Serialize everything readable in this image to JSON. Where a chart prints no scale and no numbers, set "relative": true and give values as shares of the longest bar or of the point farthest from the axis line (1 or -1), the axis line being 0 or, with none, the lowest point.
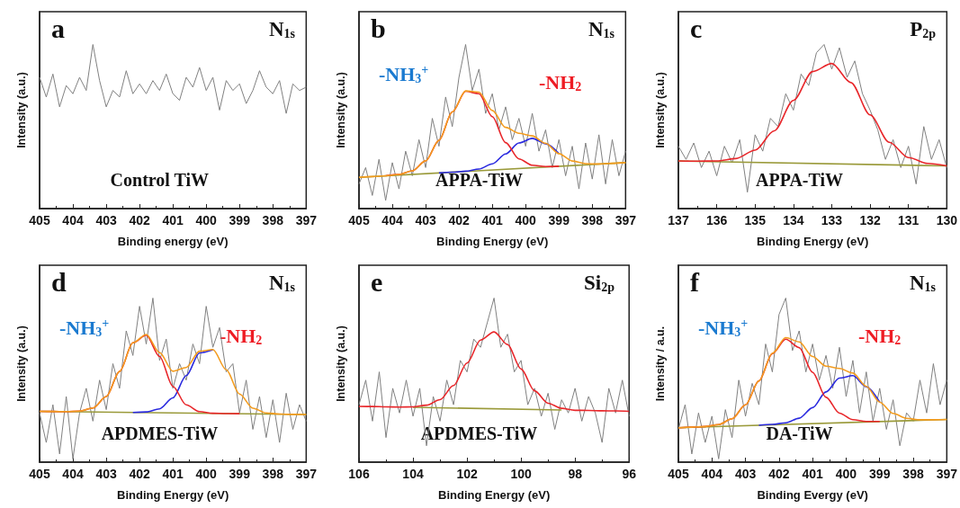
{
  "chart_data": [
    {
      "type": "line",
      "title": "a",
      "subtitle": "N$_{1s}$",
      "xlabel": "Binding energy (eV)",
      "ylabel": "Intensity (a.u.)",
      "annotations": [
        "Control TiW"
      ],
      "relative": true,
      "marker": "none",
      "xlim": [
        405,
        397
      ],
      "xticks": [
        405,
        404,
        403,
        402,
        401,
        400,
        399,
        398,
        397
      ],
      "series": [
        {
          "color": "#808080",
          "x": [
            405,
            404.8,
            404.6,
            404.4,
            404.2,
            404,
            403.8,
            403.6,
            403.4,
            403.2,
            403,
            402.8,
            402.6,
            402.4,
            402.2,
            402,
            401.8,
            401.6,
            401.4,
            401.2,
            401,
            400.8,
            400.6,
            400.4,
            400.2,
            400,
            399.8,
            399.6,
            399.4,
            399.2,
            399,
            398.8,
            398.6,
            398.4,
            398.2,
            398,
            397.8,
            397.6,
            397.4,
            397.2,
            397
          ],
          "values": [
            0.8,
            0.68,
            0.82,
            0.62,
            0.75,
            0.7,
            0.8,
            0.72,
            1,
            0.78,
            0.62,
            0.72,
            0.68,
            0.84,
            0.7,
            0.76,
            0.7,
            0.78,
            0.72,
            0.82,
            0.7,
            0.66,
            0.8,
            0.74,
            0.86,
            0.72,
            0.8,
            0.6,
            0.78,
            0.72,
            0.76,
            0.64,
            0.72,
            0.84,
            0.74,
            0.7,
            0.78,
            0.58,
            0.76,
            0.72,
            0.74
          ]
        }
      ]
    },
    {
      "type": "line",
      "title": "b",
      "subtitle": "N$_{1s}$",
      "xlabel": "Binding Energy (eV)",
      "ylabel": "Intensity (a.u.)",
      "annotations": [
        "APPA-TiW",
        "-NH$_{3}$$^{+}$",
        "-NH$_{2}$"
      ],
      "relative": true,
      "marker": "none",
      "xlim": [
        405,
        397
      ],
      "xticks": [
        405,
        404,
        403,
        402,
        401,
        400,
        399,
        398,
        397
      ],
      "series": [
        {
          "color": "#808080",
          "x": [
            405,
            404.8,
            404.6,
            404.4,
            404.2,
            404,
            403.8,
            403.6,
            403.4,
            403.2,
            403,
            402.8,
            402.6,
            402.4,
            402.2,
            402,
            401.8,
            401.6,
            401.4,
            401.2,
            401,
            400.8,
            400.6,
            400.4,
            400.2,
            400,
            399.8,
            399.6,
            399.4,
            399.2,
            399,
            398.8,
            398.6,
            398.4,
            398.2,
            398,
            397.8,
            397.6,
            397.4,
            397.2,
            397
          ],
          "values": [
            0.15,
            0.25,
            0.08,
            0.3,
            0.05,
            0.28,
            0.12,
            0.35,
            0.2,
            0.42,
            0.25,
            0.55,
            0.38,
            0.68,
            0.5,
            0.8,
            1,
            0.72,
            0.85,
            0.58,
            0.7,
            0.48,
            0.62,
            0.42,
            0.55,
            0.38,
            0.58,
            0.35,
            0.48,
            0.25,
            0.42,
            0.2,
            0.38,
            0.12,
            0.4,
            0.18,
            0.45,
            0.15,
            0.42,
            0.2,
            0.35
          ]
        },
        {
          "color": "#9a9a3a",
          "x": [
            405,
            397
          ],
          "values": [
            0.19,
            0.28
          ]
        },
        {
          "color": "#2a2adf",
          "x": [
            402.6,
            402.2,
            401.8,
            401.4,
            401,
            400.6,
            400.2,
            399.8,
            399.4,
            399
          ],
          "values": [
            0.217,
            0.222,
            0.228,
            0.241,
            0.273,
            0.333,
            0.4,
            0.428,
            0.395,
            0.335
          ]
        },
        {
          "color": "#e8262a",
          "x": [
            404.2,
            403.8,
            403.4,
            403,
            402.6,
            402.2,
            401.8,
            401.4,
            401,
            400.6,
            400.2,
            399.8,
            399.4,
            399
          ],
          "values": [
            0.2,
            0.208,
            0.23,
            0.291,
            0.416,
            0.589,
            0.715,
            0.7,
            0.56,
            0.402,
            0.303,
            0.264,
            0.256,
            0.258
          ]
        },
        {
          "color": "#f39c1f",
          "x": [
            405,
            404.6,
            404.2,
            403.8,
            403.4,
            403,
            402.6,
            402.2,
            401.8,
            401.4,
            401,
            400.6,
            400.2,
            399.8,
            399.4,
            399,
            398.6,
            398.2,
            397.8,
            397.4,
            397
          ],
          "values": [
            0.19,
            0.195,
            0.2,
            0.208,
            0.23,
            0.291,
            0.416,
            0.589,
            0.717,
            0.71,
            0.598,
            0.495,
            0.459,
            0.443,
            0.398,
            0.335,
            0.29,
            0.274,
            0.272,
            0.276,
            0.28
          ]
        }
      ]
    },
    {
      "type": "line",
      "title": "c",
      "subtitle": "P$_{2p}$",
      "xlabel": "Binding Energy (eV)",
      "ylabel": "Intensity (a.u.)",
      "annotations": [
        "APPA-TiW"
      ],
      "relative": true,
      "marker": "none",
      "xlim": [
        137,
        130
      ],
      "xticks": [
        137,
        136,
        135,
        134,
        133,
        132,
        131,
        130
      ],
      "series": [
        {
          "color": "#808080",
          "x": [
            137,
            136.8,
            136.6,
            136.4,
            136.2,
            136,
            135.8,
            135.6,
            135.4,
            135.2,
            135,
            134.8,
            134.6,
            134.4,
            134.2,
            134,
            133.8,
            133.6,
            133.4,
            133.2,
            133,
            132.8,
            132.6,
            132.4,
            132.2,
            132,
            131.8,
            131.6,
            131.4,
            131.2,
            131,
            130.8,
            130.6,
            130.4,
            130.2,
            130
          ],
          "values": [
            0.38,
            0.3,
            0.4,
            0.25,
            0.35,
            0.2,
            0.38,
            0.28,
            0.42,
            0.1,
            0.45,
            0.35,
            0.55,
            0.5,
            0.7,
            0.6,
            0.82,
            0.75,
            0.95,
            1,
            0.85,
            0.98,
            0.8,
            0.9,
            0.7,
            0.6,
            0.48,
            0.3,
            0.42,
            0.25,
            0.38,
            0.15,
            0.5,
            0.3,
            0.42,
            0.25
          ]
        },
        {
          "color": "#9a9a3a",
          "x": [
            137,
            130
          ],
          "values": [
            0.29,
            0.26
          ]
        },
        {
          "color": "#e8262a",
          "x": [
            137,
            136.5,
            136,
            135.5,
            135,
            134.5,
            134,
            133.5,
            133,
            132.5,
            132,
            131.5,
            131,
            130.5,
            130
          ],
          "values": [
            0.29,
            0.289,
            0.29,
            0.305,
            0.356,
            0.474,
            0.659,
            0.835,
            0.884,
            0.768,
            0.571,
            0.404,
            0.311,
            0.275,
            0.26
          ]
        }
      ]
    },
    {
      "type": "line",
      "title": "d",
      "subtitle": "N$_{1s}$",
      "xlabel": "Binding Energy (eV)",
      "ylabel": "Intensity (a.u.)",
      "annotations": [
        "APDMES-TiW",
        "-NH$_{3}$$^{+}$",
        "-NH$_{2}$"
      ],
      "relative": true,
      "marker": "none",
      "xlim": [
        405,
        397
      ],
      "xticks": [
        405,
        404,
        403,
        402,
        401,
        400,
        399,
        398,
        397
      ],
      "series": [
        {
          "color": "#808080",
          "x": [
            405,
            404.8,
            404.6,
            404.4,
            404.2,
            404,
            403.8,
            403.6,
            403.4,
            403.2,
            403,
            402.8,
            402.6,
            402.4,
            402.2,
            402,
            401.8,
            401.6,
            401.4,
            401.2,
            401,
            400.8,
            400.6,
            400.4,
            400.2,
            400,
            399.8,
            399.6,
            399.4,
            399.2,
            399,
            398.8,
            398.6,
            398.4,
            398.2,
            398,
            397.8,
            397.6,
            397.4,
            397.2,
            397
          ],
          "values": [
            0.3,
            0.12,
            0.35,
            0.05,
            0.4,
            0.02,
            0.3,
            0.45,
            0.25,
            0.5,
            0.32,
            0.6,
            0.45,
            0.8,
            0.65,
            0.95,
            0.72,
            1,
            0.62,
            0.75,
            0.45,
            0.6,
            0.5,
            0.72,
            0.6,
            0.95,
            0.7,
            0.82,
            0.55,
            0.6,
            0.3,
            0.5,
            0.2,
            0.4,
            0.15,
            0.38,
            0.12,
            0.42,
            0.2,
            0.35,
            0.25
          ]
        },
        {
          "color": "#9a9a3a",
          "x": [
            405,
            397
          ],
          "values": [
            0.31,
            0.29
          ]
        },
        {
          "color": "#2a2adf",
          "x": [
            402.2,
            401.8,
            401.4,
            401,
            400.6,
            400.2,
            399.8
          ],
          "values": [
            0.303,
            0.306,
            0.325,
            0.392,
            0.527,
            0.666,
            0.685
          ]
        },
        {
          "color": "#e8262a",
          "x": [
            405,
            404.6,
            404.2,
            403.8,
            403.4,
            403,
            402.6,
            402.2,
            401.8,
            401.4,
            401,
            400.6,
            400.2,
            399.8,
            399.4,
            399
          ],
          "values": [
            0.31,
            0.309,
            0.308,
            0.311,
            0.33,
            0.4,
            0.553,
            0.727,
            0.774,
            0.644,
            0.462,
            0.349,
            0.308,
            0.298,
            0.296,
            0.295
          ]
        },
        {
          "color": "#f39c1f",
          "x": [
            405,
            404.6,
            404.2,
            403.8,
            403.4,
            403,
            402.6,
            402.2,
            401.8,
            401.4,
            401,
            400.6,
            400.2,
            399.8,
            399.4,
            399,
            398.6,
            398.2,
            397.8,
            397.4,
            397
          ],
          "values": [
            0.31,
            0.309,
            0.308,
            0.311,
            0.33,
            0.4,
            0.553,
            0.727,
            0.778,
            0.668,
            0.554,
            0.577,
            0.676,
            0.686,
            0.563,
            0.415,
            0.329,
            0.3,
            0.293,
            0.291,
            0.29
          ]
        }
      ]
    },
    {
      "type": "line",
      "title": "e",
      "subtitle": "Si$_{2p}$",
      "xlabel": "Binding Energy (eV)",
      "ylabel": "Intensity (a.u.)",
      "annotations": [
        "APDMES-TiW"
      ],
      "relative": true,
      "marker": "none",
      "xlim": [
        106,
        96
      ],
      "xticks": [
        106,
        104,
        102,
        100,
        98,
        96
      ],
      "series": [
        {
          "color": "#808080",
          "x": [
            106,
            105.75,
            105.5,
            105.25,
            105,
            104.75,
            104.5,
            104.25,
            104,
            103.75,
            103.5,
            103.25,
            103,
            102.75,
            102.5,
            102.25,
            102,
            101.75,
            101.5,
            101.25,
            101,
            100.75,
            100.5,
            100.25,
            100,
            99.75,
            99.5,
            99.25,
            99,
            98.75,
            98.5,
            98.25,
            98,
            97.75,
            97.5,
            97.25,
            97,
            96.75,
            96.5,
            96.25,
            96
          ],
          "values": [
            0.35,
            0.5,
            0.25,
            0.55,
            0.15,
            0.45,
            0.3,
            0.5,
            0.28,
            0.45,
            0.1,
            0.4,
            0.25,
            0.5,
            0.35,
            0.62,
            0.55,
            0.75,
            0.7,
            0.85,
            1,
            0.7,
            0.78,
            0.55,
            0.62,
            0.35,
            0.45,
            0.28,
            0.42,
            0.2,
            0.38,
            0.3,
            0.45,
            0.25,
            0.4,
            0.3,
            0.12,
            0.45,
            0.3,
            0.5,
            0.28
          ]
        },
        {
          "color": "#9a9a3a",
          "x": [
            104,
            98.5
          ],
          "values": [
            0.334,
            0.318
          ]
        },
        {
          "color": "#e8262a",
          "x": [
            106,
            105.5,
            105,
            104.5,
            104,
            103.5,
            103,
            102.5,
            102,
            101.5,
            101,
            100.5,
            100,
            99.5,
            99,
            98.5,
            98,
            97.5,
            97,
            96.5,
            96
          ],
          "values": [
            0.34,
            0.339,
            0.337,
            0.336,
            0.337,
            0.347,
            0.381,
            0.467,
            0.604,
            0.744,
            0.794,
            0.717,
            0.568,
            0.435,
            0.359,
            0.328,
            0.316,
            0.315,
            0.313,
            0.312,
            0.31
          ]
        }
      ]
    },
    {
      "type": "line",
      "title": "f",
      "subtitle": "N$_{1s}$",
      "xlabel": "Binding Evergy (eV)",
      "ylabel": "Intensity / a.u.",
      "annotations": [
        "DA-TiW",
        "-NH$_{3}$$^{+}$",
        "-NH$_{2}$"
      ],
      "relative": true,
      "marker": "none",
      "xlim": [
        405,
        397
      ],
      "xticks": [
        405,
        404,
        403,
        402,
        401,
        400,
        399,
        398,
        397
      ],
      "series": [
        {
          "color": "#808080",
          "x": [
            405,
            404.8,
            404.6,
            404.4,
            404.2,
            404,
            403.8,
            403.6,
            403.4,
            403.2,
            403,
            402.8,
            402.6,
            402.4,
            402.2,
            402,
            401.8,
            401.6,
            401.4,
            401.2,
            401,
            400.8,
            400.6,
            400.4,
            400.2,
            400,
            399.8,
            399.6,
            399.4,
            399.2,
            399,
            398.8,
            398.6,
            398.4,
            398.2,
            398,
            397.8,
            397.6,
            397.4,
            397.2,
            397
          ],
          "values": [
            0.2,
            0.35,
            0.05,
            0.3,
            0.12,
            0.28,
            0.02,
            0.32,
            0.15,
            0.5,
            0.28,
            0.48,
            0.35,
            0.72,
            0.55,
            0.9,
            1,
            0.68,
            0.8,
            0.55,
            0.72,
            0.5,
            0.65,
            0.45,
            0.7,
            0.4,
            0.62,
            0.3,
            0.55,
            0.25,
            0.45,
            0.2,
            0.38,
            0.1,
            0.3,
            0.25,
            0.5,
            0.3,
            0.6,
            0.35,
            0.5
          ]
        },
        {
          "color": "#9a9a3a",
          "x": [
            405,
            397
          ],
          "values": [
            0.21,
            0.26
          ]
        },
        {
          "color": "#2a2adf",
          "x": [
            402.6,
            402.2,
            401.8,
            401.4,
            401,
            400.6,
            400.2,
            399.8,
            399.4,
            399
          ],
          "values": [
            0.225,
            0.23,
            0.24,
            0.268,
            0.332,
            0.428,
            0.512,
            0.527,
            0.459,
            0.366
          ]
        },
        {
          "color": "#e8262a",
          "x": [
            405,
            404.6,
            404.2,
            403.8,
            403.4,
            403,
            402.6,
            402.2,
            401.8,
            401.4,
            401,
            400.6,
            400.2,
            399.8,
            399.4,
            399
          ],
          "values": [
            0.21,
            0.213,
            0.217,
            0.229,
            0.264,
            0.349,
            0.495,
            0.661,
            0.749,
            0.698,
            0.547,
            0.395,
            0.299,
            0.259,
            0.248,
            0.248
          ]
        },
        {
          "color": "#f39c1f",
          "x": [
            405,
            404.6,
            404.2,
            403.8,
            403.4,
            403,
            402.6,
            402.2,
            401.8,
            401.4,
            401,
            400.6,
            400.2,
            399.8,
            399.4,
            399,
            398.6,
            398.2,
            397.8,
            397.4,
            397
          ],
          "values": [
            0.21,
            0.213,
            0.217,
            0.229,
            0.264,
            0.349,
            0.495,
            0.663,
            0.759,
            0.733,
            0.644,
            0.585,
            0.571,
            0.543,
            0.462,
            0.366,
            0.297,
            0.267,
            0.258,
            0.258,
            0.26
          ]
        }
      ]
    }
  ]
}
